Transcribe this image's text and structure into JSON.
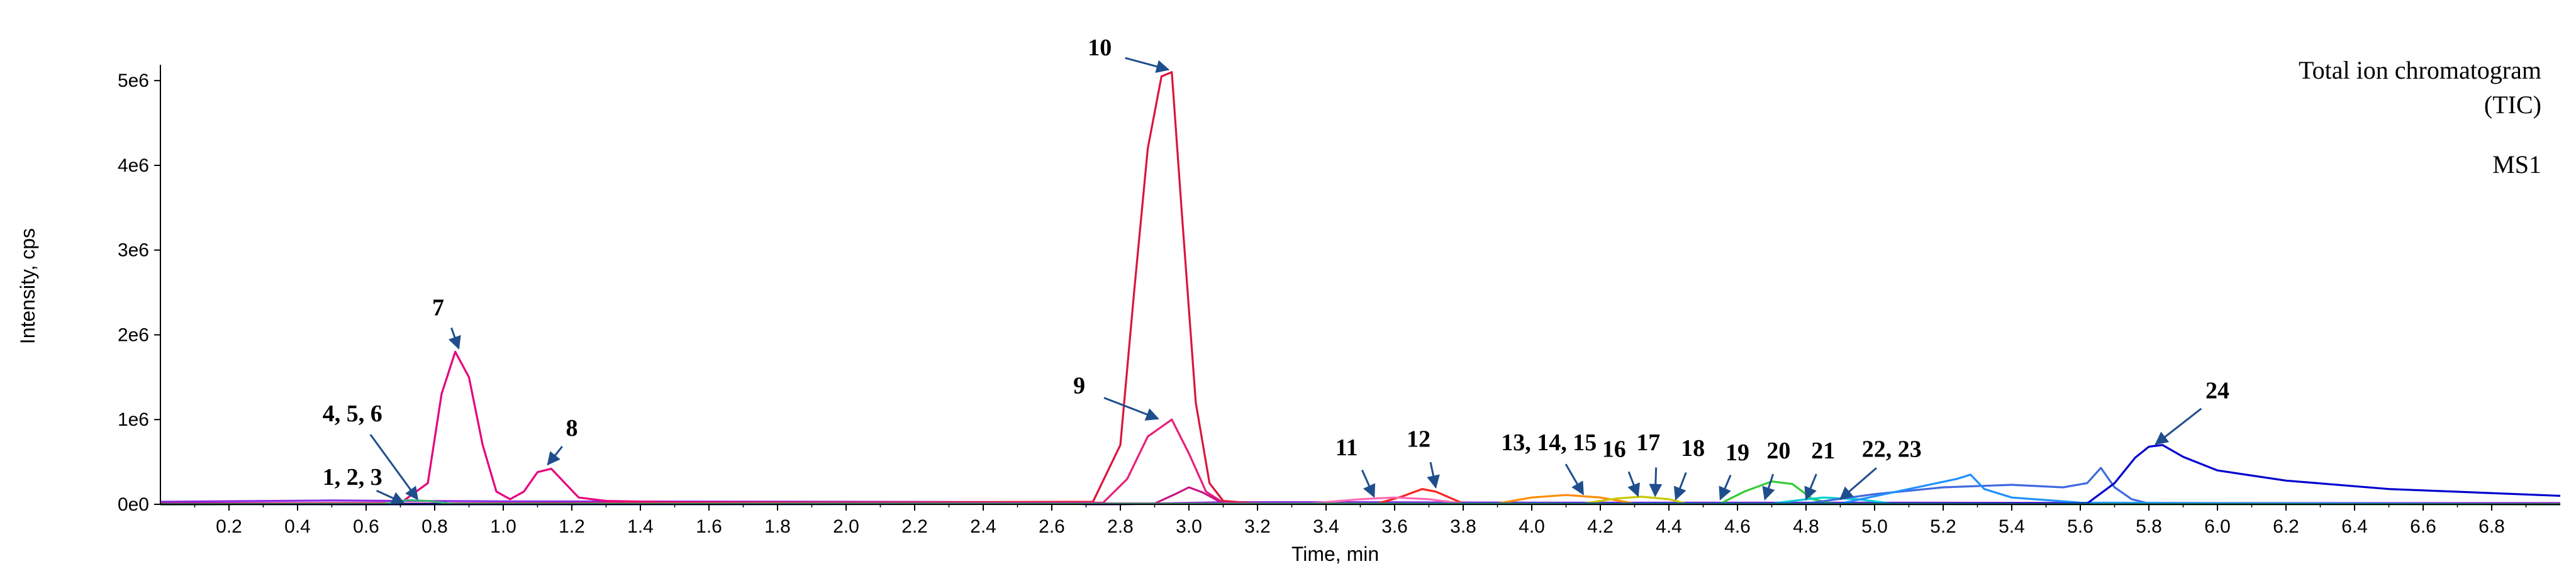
{
  "chart_data": {
    "type": "line",
    "xlabel": "Time, min",
    "ylabel": "Intensity, cps",
    "xlim": [
      0.0,
      7.0
    ],
    "ylim": [
      0,
      5150000
    ],
    "x_ticks": [
      0.2,
      0.4,
      0.6,
      0.8,
      1.0,
      1.2,
      1.4,
      1.6,
      1.8,
      2.0,
      2.2,
      2.4,
      2.6,
      2.8,
      3.0,
      3.2,
      3.4,
      3.6,
      3.8,
      4.0,
      4.2,
      4.4,
      4.6,
      4.8,
      5.0,
      5.2,
      5.4,
      5.6,
      5.8,
      6.0,
      6.2,
      6.4,
      6.6,
      6.8
    ],
    "x_tick_labels": [
      "0.2",
      "0.4",
      "0.6",
      "0.8",
      "1.0",
      "1.2",
      "1.4",
      "1.6",
      "1.8",
      "2.0",
      "2.2",
      "2.4",
      "2.6",
      "2.8",
      "3.0",
      "3.2",
      "3.4",
      "3.6",
      "3.8",
      "4.0",
      "4.2",
      "4.4",
      "4.6",
      "4.8",
      "5.0",
      "5.2",
      "5.4",
      "5.6",
      "5.8",
      "6.0",
      "6.2",
      "6.4",
      "6.6",
      "6.8"
    ],
    "y_ticks": [
      0,
      1000000,
      2000000,
      3000000,
      4000000,
      5000000
    ],
    "y_tick_labels": [
      "0e0",
      "1e6",
      "2e6",
      "3e6",
      "4e6",
      "5e6"
    ],
    "grid": false,
    "legend": "none",
    "text_notes": [
      "Total ion chromatogram",
      "(TIC)",
      "MS1"
    ],
    "series": [
      {
        "color": "#8a2be2",
        "x": [
          0.0,
          0.5,
          0.7,
          1.0,
          2.0,
          2.6,
          2.7,
          2.8,
          3.1,
          3.5,
          4.0,
          5.0,
          6.0,
          7.0
        ],
        "y": [
          30000,
          45000,
          40000,
          35000,
          30000,
          25000,
          0,
          0,
          25000,
          25000,
          20000,
          20000,
          15000,
          15000
        ]
      },
      {
        "color": "#e6007e",
        "x": [
          0.0,
          0.7,
          0.78,
          0.82,
          0.86,
          0.9,
          0.94,
          0.98,
          1.02,
          1.06,
          1.1,
          1.14,
          1.18,
          1.22,
          1.3,
          1.5,
          2.6,
          2.8,
          3.2,
          4.0,
          7.0
        ],
        "y": [
          10000,
          15000,
          250000,
          1300000,
          1800000,
          1500000,
          700000,
          150000,
          60000,
          150000,
          380000,
          420000,
          250000,
          80000,
          40000,
          25000,
          15000,
          10000,
          10000,
          5000,
          5000
        ]
      },
      {
        "color": "#dc143c",
        "x": [
          0.0,
          2.72,
          2.8,
          2.84,
          2.88,
          2.92,
          2.95,
          2.98,
          3.02,
          3.06,
          3.1,
          3.2,
          7.0
        ],
        "y": [
          0,
          30000,
          700000,
          2500000,
          4200000,
          5050000,
          5100000,
          3400000,
          1200000,
          250000,
          40000,
          10000,
          0
        ]
      },
      {
        "color": "#e8207a",
        "x": [
          0.0,
          2.75,
          2.82,
          2.88,
          2.95,
          3.0,
          3.05,
          3.1,
          3.3,
          7.0
        ],
        "y": [
          0,
          20000,
          300000,
          800000,
          1000000,
          600000,
          150000,
          20000,
          5000,
          0
        ]
      },
      {
        "color": "#c71585",
        "x": [
          0.0,
          2.9,
          2.96,
          3.0,
          3.04,
          3.1,
          7.0
        ],
        "y": [
          0,
          10000,
          120000,
          200000,
          140000,
          10000,
          0
        ]
      },
      {
        "color": "#ff2020",
        "x": [
          0.0,
          3.55,
          3.62,
          3.68,
          3.72,
          3.8,
          7.0
        ],
        "y": [
          0,
          10000,
          90000,
          180000,
          150000,
          10000,
          0
        ]
      },
      {
        "color": "#ff69b4",
        "x": [
          0.0,
          3.35,
          3.5,
          3.6,
          3.7,
          3.8,
          7.0
        ],
        "y": [
          0,
          10000,
          60000,
          80000,
          60000,
          10000,
          0
        ]
      },
      {
        "color": "#ff8c00",
        "x": [
          0.0,
          3.9,
          4.0,
          4.1,
          4.2,
          4.3,
          7.0
        ],
        "y": [
          0,
          10000,
          80000,
          110000,
          80000,
          10000,
          0
        ]
      },
      {
        "color": "#c8c800",
        "x": [
          0.0,
          4.15,
          4.25,
          4.32,
          4.4,
          4.45,
          7.0
        ],
        "y": [
          0,
          10000,
          70000,
          90000,
          60000,
          10000,
          0
        ]
      },
      {
        "color": "#32cd32",
        "x": [
          0.0,
          4.55,
          4.62,
          4.7,
          4.76,
          4.82,
          4.88,
          7.0
        ],
        "y": [
          0,
          10000,
          150000,
          270000,
          240000,
          60000,
          10000,
          0
        ]
      },
      {
        "color": "#00ced1",
        "x": [
          0.0,
          4.7,
          4.78,
          4.85,
          4.95,
          5.05,
          7.0
        ],
        "y": [
          0,
          10000,
          50000,
          80000,
          60000,
          10000,
          0
        ]
      },
      {
        "color": "#4169e1",
        "x": [
          0.0,
          4.8,
          5.0,
          5.2,
          5.4,
          5.55,
          5.62,
          5.66,
          5.7,
          5.75,
          5.8,
          7.0
        ],
        "y": [
          0,
          10000,
          120000,
          200000,
          230000,
          200000,
          250000,
          430000,
          200000,
          60000,
          10000,
          0
        ]
      },
      {
        "color": "#1e90ff",
        "x": [
          0.0,
          4.9,
          5.1,
          5.24,
          5.28,
          5.32,
          5.4,
          5.6,
          7.0
        ],
        "y": [
          0,
          10000,
          180000,
          300000,
          350000,
          180000,
          80000,
          20000,
          0
        ]
      },
      {
        "color": "#0000cd",
        "x": [
          0.0,
          5.62,
          5.7,
          5.76,
          5.8,
          5.84,
          5.9,
          6.0,
          6.2,
          6.5,
          7.0
        ],
        "y": [
          0,
          10000,
          250000,
          550000,
          680000,
          700000,
          560000,
          400000,
          280000,
          180000,
          100000
        ]
      },
      {
        "color": "#3cb371",
        "x": [
          0.0,
          0.65,
          0.72,
          0.78,
          0.85,
          7.0
        ],
        "y": [
          0,
          5000,
          50000,
          40000,
          5000,
          0
        ]
      }
    ],
    "annotations": [
      {
        "label": "1, 2, 3",
        "tx": 0.56,
        "ty": 230000,
        "ax": 0.71,
        "ay": 15000,
        "anchor": "middle"
      },
      {
        "label": "4, 5, 6",
        "tx": 0.56,
        "ty": 980000,
        "ax": 0.75,
        "ay": 60000,
        "anchor": "middle"
      },
      {
        "label": "7",
        "tx": 0.81,
        "ty": 2230000,
        "ax": 0.87,
        "ay": 1840000,
        "anchor": "middle"
      },
      {
        "label": "8",
        "tx": 1.2,
        "ty": 810000,
        "ax": 1.13,
        "ay": 470000,
        "anchor": "middle"
      },
      {
        "label": "9",
        "tx": 2.68,
        "ty": 1310000,
        "ax": 2.91,
        "ay": 1010000,
        "anchor": "middle"
      },
      {
        "label": "10",
        "tx": 2.74,
        "ty": 5300000,
        "ax": 2.94,
        "ay": 5130000,
        "anchor": "middle"
      },
      {
        "label": "11",
        "tx": 3.46,
        "ty": 580000,
        "ax": 3.54,
        "ay": 90000,
        "anchor": "middle"
      },
      {
        "label": "12",
        "tx": 3.67,
        "ty": 680000,
        "ax": 3.72,
        "ay": 200000,
        "anchor": "middle"
      },
      {
        "label": "13, 14, 15",
        "tx": 4.05,
        "ty": 640000,
        "ax": 4.15,
        "ay": 120000,
        "anchor": "middle"
      },
      {
        "label": "16",
        "tx": 4.24,
        "ty": 560000,
        "ax": 4.31,
        "ay": 100000,
        "anchor": "middle"
      },
      {
        "label": "17",
        "tx": 4.34,
        "ty": 640000,
        "ax": 4.36,
        "ay": 100000,
        "anchor": "middle"
      },
      {
        "label": "18",
        "tx": 4.47,
        "ty": 570000,
        "ax": 4.42,
        "ay": 60000,
        "anchor": "middle"
      },
      {
        "label": "19",
        "tx": 4.6,
        "ty": 520000,
        "ax": 4.55,
        "ay": 60000,
        "anchor": "middle"
      },
      {
        "label": "20",
        "tx": 4.72,
        "ty": 540000,
        "ax": 4.68,
        "ay": 60000,
        "anchor": "middle"
      },
      {
        "label": "21",
        "tx": 4.85,
        "ty": 540000,
        "ax": 4.8,
        "ay": 60000,
        "anchor": "middle"
      },
      {
        "label": "22, 23",
        "tx": 5.05,
        "ty": 560000,
        "ax": 4.9,
        "ay": 60000,
        "anchor": "middle"
      },
      {
        "label": "24",
        "tx": 6.0,
        "ty": 1250000,
        "ax": 5.82,
        "ay": 710000,
        "anchor": "middle"
      }
    ]
  }
}
